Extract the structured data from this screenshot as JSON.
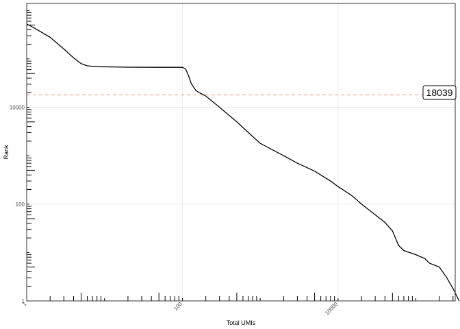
{
  "chart_data": {
    "type": "line",
    "title": "",
    "xlabel": "Total UMIs",
    "ylabel": "Rank",
    "x_scale": "log10",
    "y_scale": "log10",
    "xlim": [
      1,
      320000
    ],
    "ylim": [
      1,
      1400000
    ],
    "grid": true,
    "x_tick_labels": [
      {
        "value": 1,
        "label": "1"
      },
      {
        "value": 100,
        "label": "100"
      },
      {
        "value": 10000,
        "label": "10000"
      }
    ],
    "y_tick_labels": [
      {
        "value": 1,
        "label": "1"
      },
      {
        "value": 100,
        "label": "100"
      },
      {
        "value": 10000,
        "label": "10000"
      }
    ],
    "threshold": {
      "value": 18039,
      "label": "18039",
      "color": "#f08a78"
    },
    "series": [
      {
        "color": "#000000",
        "points": [
          [
            1,
            530000
          ],
          [
            1.3,
            420000
          ],
          [
            2,
            280000
          ],
          [
            3,
            160000
          ],
          [
            4,
            105000
          ],
          [
            5,
            80000
          ],
          [
            6,
            72000
          ],
          [
            8,
            69000
          ],
          [
            20,
            67500
          ],
          [
            50,
            67000
          ],
          [
            100,
            67000
          ],
          [
            110,
            62000
          ],
          [
            120,
            45000
          ],
          [
            130,
            31000
          ],
          [
            150,
            22000
          ],
          [
            200,
            17000
          ],
          [
            300,
            10000
          ],
          [
            500,
            5000
          ],
          [
            800,
            2500
          ],
          [
            1000,
            1800
          ],
          [
            2000,
            1000
          ],
          [
            3000,
            700
          ],
          [
            5000,
            480
          ],
          [
            8000,
            300
          ],
          [
            10000,
            230
          ],
          [
            15000,
            150
          ],
          [
            20000,
            100
          ],
          [
            30000,
            60
          ],
          [
            40000,
            42
          ],
          [
            50000,
            28
          ],
          [
            60000,
            14
          ],
          [
            70000,
            11
          ],
          [
            100000,
            9
          ],
          [
            130000,
            7.5
          ],
          [
            150000,
            6
          ],
          [
            200000,
            5
          ],
          [
            250000,
            3
          ],
          [
            300000,
            1.8
          ],
          [
            360000,
            1
          ]
        ]
      }
    ]
  }
}
